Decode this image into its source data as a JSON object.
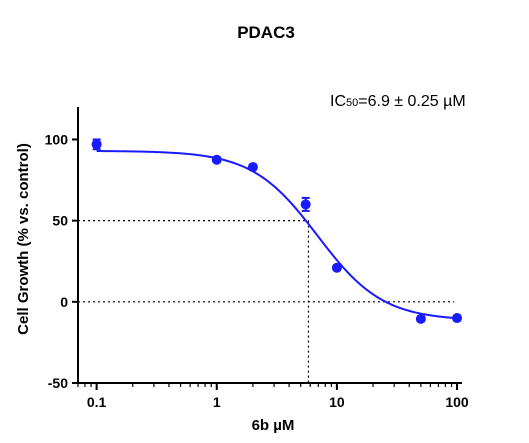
{
  "chart_data": {
    "type": "scatter",
    "title": "PDAC3",
    "xlabel": "6b µM",
    "ylabel": "Cell Growth (% vs. control)",
    "x_scale": "log",
    "xlim": [
      0.07,
      110
    ],
    "ylim": [
      -50,
      120
    ],
    "x_ticks": [
      0.1,
      1,
      10,
      100
    ],
    "x_tick_labels": [
      "0.1",
      "1",
      "10",
      "100"
    ],
    "y_ticks": [
      -50,
      0,
      50,
      100
    ],
    "y_tick_labels": [
      "-50",
      "0",
      "50",
      "100"
    ],
    "series": [
      {
        "color": "#1a1aff",
        "x": [
          0.1,
          1,
          2,
          5.5,
          10,
          50,
          100
        ],
        "y": [
          97,
          87.5,
          83,
          60,
          21,
          -10.5,
          -10
        ],
        "error": [
          3,
          1.5,
          1.5,
          4,
          1.5,
          1.5,
          1.5
        ]
      }
    ],
    "fit": {
      "model": "sigmoidal dose-response",
      "top": 93,
      "bottom": -11.5,
      "ic50": 6.9,
      "hill_slope": 1.6
    },
    "reference_lines": {
      "y_zero": 0,
      "y_half": 50,
      "x_ic50": 5.8
    },
    "annotation": {
      "prefix": "IC",
      "subscript": "50",
      "suffix": "=6.9 ± 0.25 µM"
    },
    "grid": false,
    "legend": "none"
  }
}
